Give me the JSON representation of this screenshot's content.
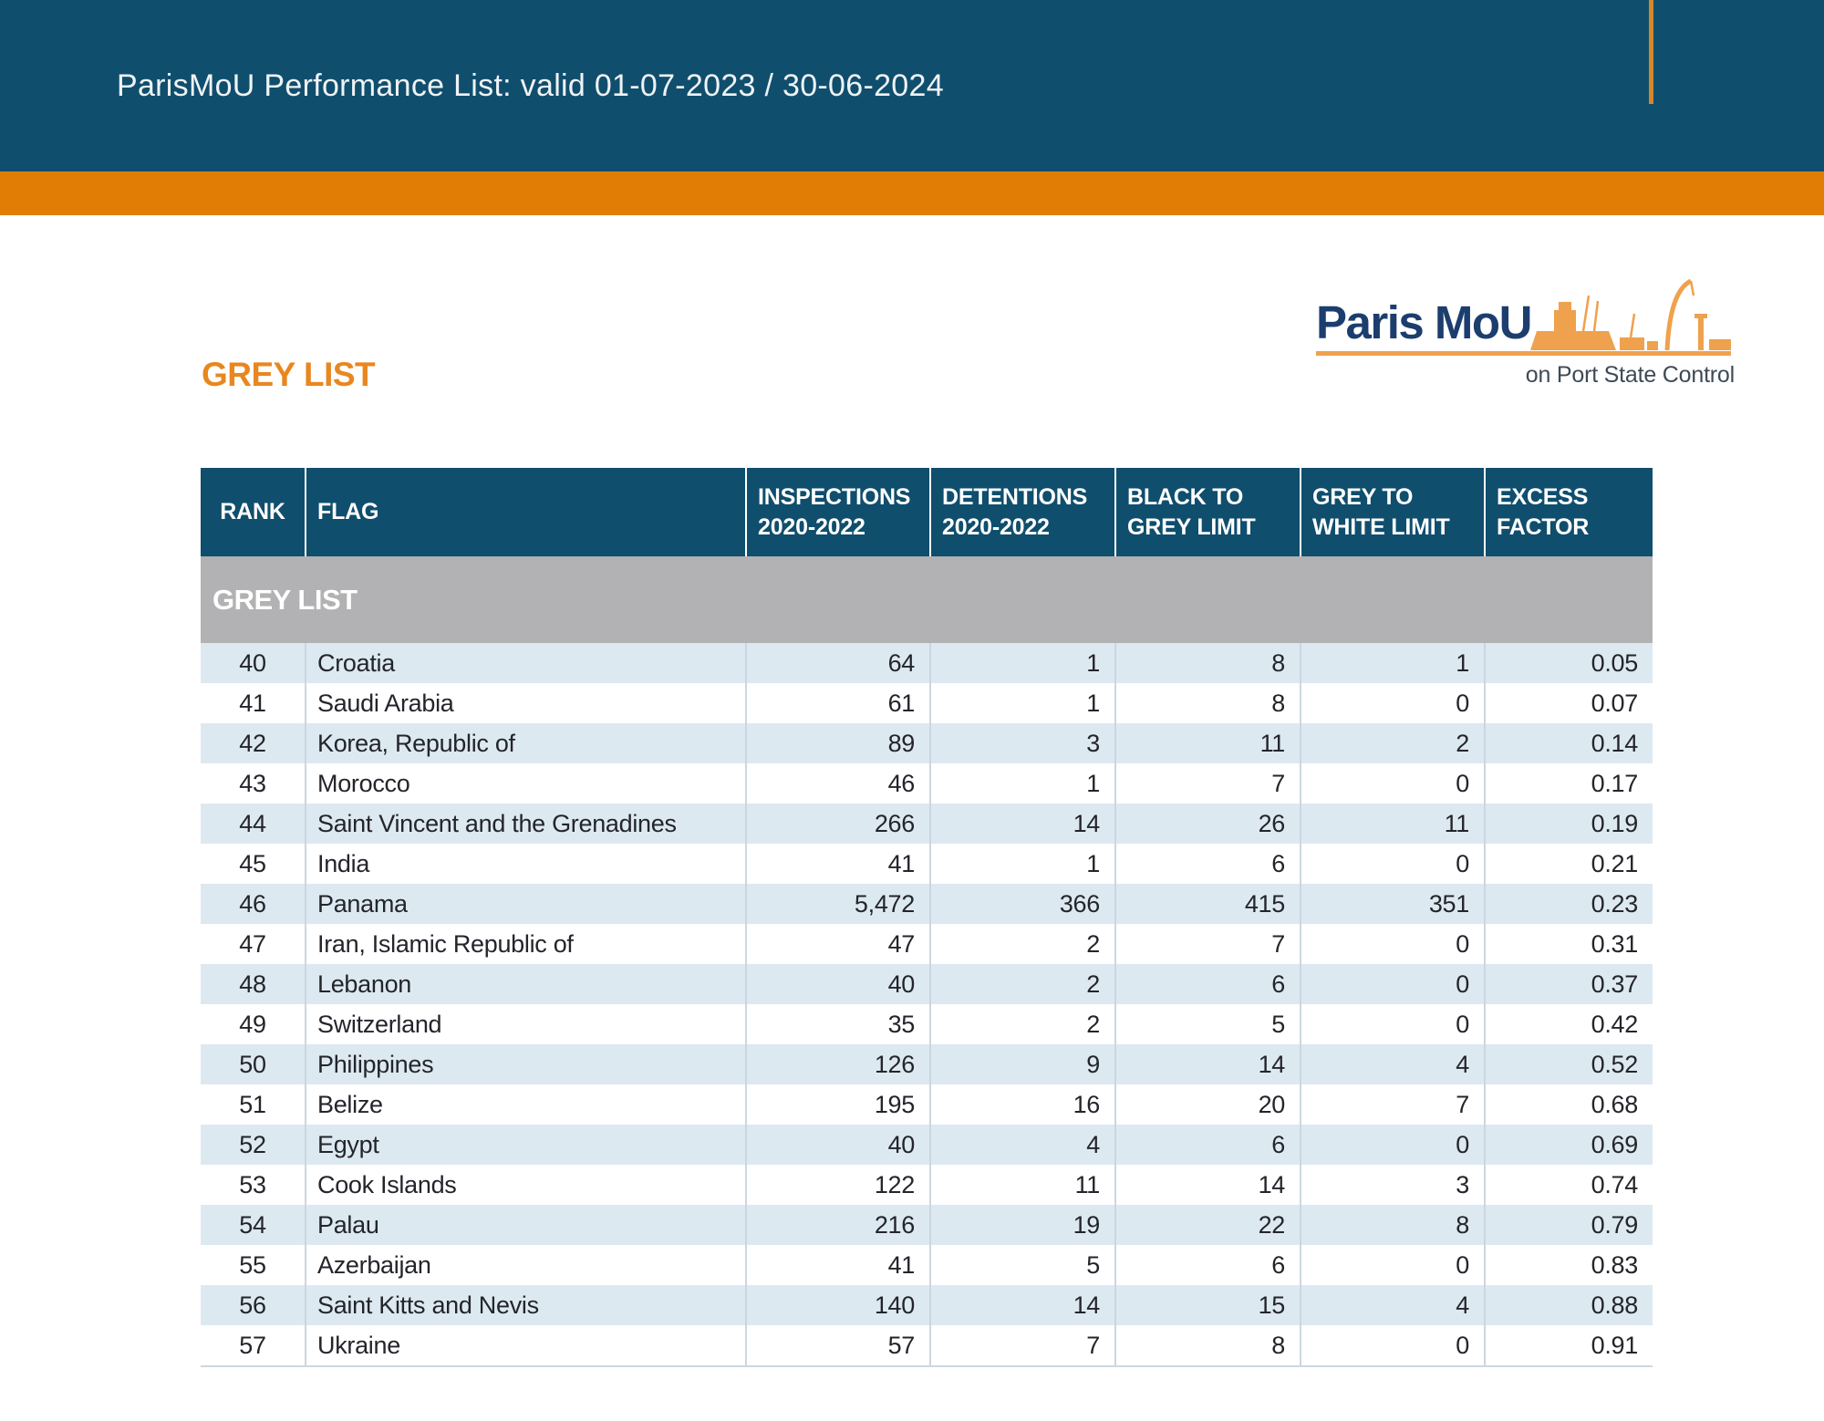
{
  "page_header": {
    "title": "ParisMoU Performance List: valid 01-07-2023 / 30-06-2024"
  },
  "section": {
    "title": "GREY LIST"
  },
  "logo": {
    "name": "Paris MoU",
    "tagline": "on Port State Control",
    "icon": "harbor-ship-and-cranes-silhouette"
  },
  "table": {
    "columns": [
      "RANK",
      "FLAG",
      "INSPECTIONS\n2020-2022",
      "DETENTIONS\n2020-2022",
      "BLACK TO\nGREY LIMIT",
      "GREY TO\nWHITE LIMIT",
      "EXCESS\nFACTOR"
    ],
    "group_label": "GREY LIST",
    "rows": [
      {
        "rank": "40",
        "flag": "Croatia",
        "inspections": "64",
        "detentions": "1",
        "black_to_grey": "8",
        "grey_to_white": "1",
        "excess": "0.05"
      },
      {
        "rank": "41",
        "flag": "Saudi Arabia",
        "inspections": "61",
        "detentions": "1",
        "black_to_grey": "8",
        "grey_to_white": "0",
        "excess": "0.07"
      },
      {
        "rank": "42",
        "flag": "Korea, Republic of",
        "inspections": "89",
        "detentions": "3",
        "black_to_grey": "11",
        "grey_to_white": "2",
        "excess": "0.14"
      },
      {
        "rank": "43",
        "flag": "Morocco",
        "inspections": "46",
        "detentions": "1",
        "black_to_grey": "7",
        "grey_to_white": "0",
        "excess": "0.17"
      },
      {
        "rank": "44",
        "flag": "Saint Vincent and the Grenadines",
        "inspections": "266",
        "detentions": "14",
        "black_to_grey": "26",
        "grey_to_white": "11",
        "excess": "0.19"
      },
      {
        "rank": "45",
        "flag": "India",
        "inspections": "41",
        "detentions": "1",
        "black_to_grey": "6",
        "grey_to_white": "0",
        "excess": "0.21"
      },
      {
        "rank": "46",
        "flag": "Panama",
        "inspections": "5,472",
        "detentions": "366",
        "black_to_grey": "415",
        "grey_to_white": "351",
        "excess": "0.23"
      },
      {
        "rank": "47",
        "flag": "Iran, Islamic Republic of",
        "inspections": "47",
        "detentions": "2",
        "black_to_grey": "7",
        "grey_to_white": "0",
        "excess": "0.31"
      },
      {
        "rank": "48",
        "flag": "Lebanon",
        "inspections": "40",
        "detentions": "2",
        "black_to_grey": "6",
        "grey_to_white": "0",
        "excess": "0.37"
      },
      {
        "rank": "49",
        "flag": "Switzerland",
        "inspections": "35",
        "detentions": "2",
        "black_to_grey": "5",
        "grey_to_white": "0",
        "excess": "0.42"
      },
      {
        "rank": "50",
        "flag": "Philippines",
        "inspections": "126",
        "detentions": "9",
        "black_to_grey": "14",
        "grey_to_white": "4",
        "excess": "0.52"
      },
      {
        "rank": "51",
        "flag": "Belize",
        "inspections": "195",
        "detentions": "16",
        "black_to_grey": "20",
        "grey_to_white": "7",
        "excess": "0.68"
      },
      {
        "rank": "52",
        "flag": "Egypt",
        "inspections": "40",
        "detentions": "4",
        "black_to_grey": "6",
        "grey_to_white": "0",
        "excess": "0.69"
      },
      {
        "rank": "53",
        "flag": "Cook Islands",
        "inspections": "122",
        "detentions": "11",
        "black_to_grey": "14",
        "grey_to_white": "3",
        "excess": "0.74"
      },
      {
        "rank": "54",
        "flag": "Palau",
        "inspections": "216",
        "detentions": "19",
        "black_to_grey": "22",
        "grey_to_white": "8",
        "excess": "0.79"
      },
      {
        "rank": "55",
        "flag": "Azerbaijan",
        "inspections": "41",
        "detentions": "5",
        "black_to_grey": "6",
        "grey_to_white": "0",
        "excess": "0.83"
      },
      {
        "rank": "56",
        "flag": "Saint Kitts and Nevis",
        "inspections": "140",
        "detentions": "14",
        "black_to_grey": "15",
        "grey_to_white": "4",
        "excess": "0.88"
      },
      {
        "rank": "57",
        "flag": "Ukraine",
        "inspections": "57",
        "detentions": "7",
        "black_to_grey": "8",
        "grey_to_white": "0",
        "excess": "0.91"
      }
    ]
  },
  "colors": {
    "navy": "#104e6d",
    "orange_bar": "#e17d05",
    "orange_tick": "#d5862a",
    "heading_orange": "#e8871f",
    "logo_orange": "#efa14d",
    "logo_navy": "#1c3e6e",
    "group_band_grey": "#b2b2b4",
    "row_alternate_blue": "#dde9f1",
    "cell_separator": "#cbd7e0",
    "body_text": "#23252b"
  }
}
